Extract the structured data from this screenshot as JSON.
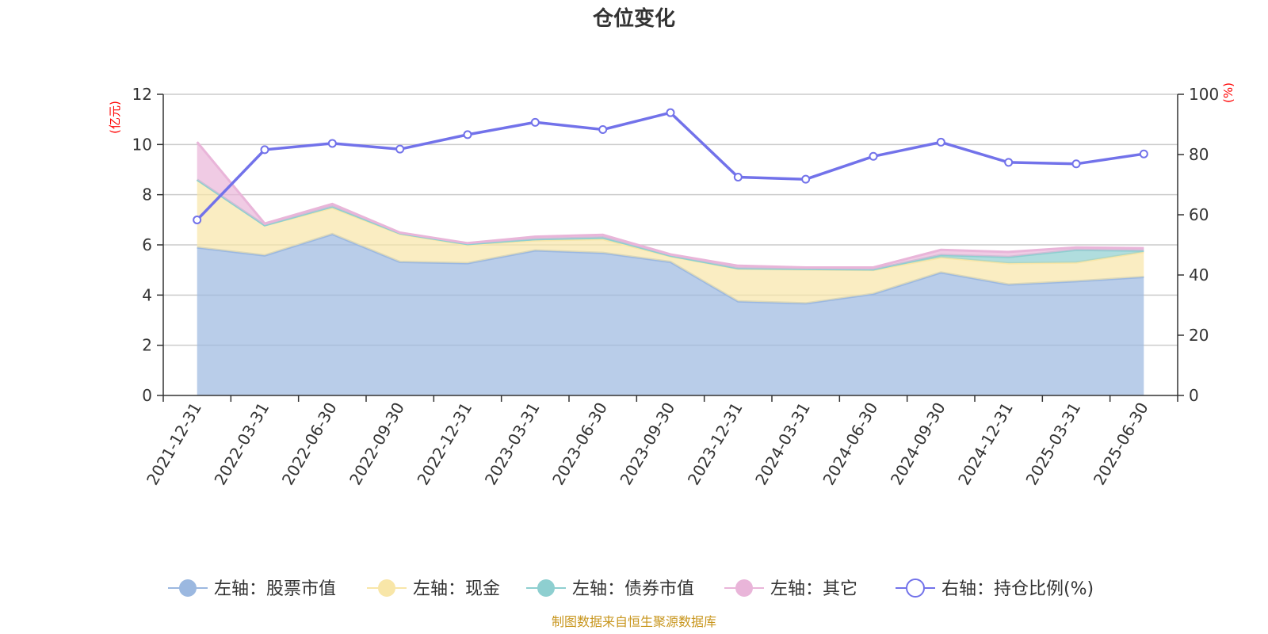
{
  "chart_data": {
    "type": "area",
    "title": "仓位变化",
    "categories": [
      "2021-12-31",
      "2022-03-31",
      "2022-06-30",
      "2022-09-30",
      "2022-12-31",
      "2023-03-31",
      "2023-06-30",
      "2023-09-30",
      "2023-12-31",
      "2024-03-31",
      "2024-06-30",
      "2024-09-30",
      "2024-12-31",
      "2025-03-31",
      "2025-06-30"
    ],
    "left_axis": {
      "unit": "(亿元)",
      "ylim": [
        0,
        12
      ],
      "ticks": [
        "0",
        "2",
        "4",
        "6",
        "8",
        "10",
        "12"
      ]
    },
    "right_axis": {
      "unit": "(%)",
      "ylim": [
        0,
        100
      ],
      "ticks": [
        "0",
        "20",
        "40",
        "60",
        "80",
        "100"
      ]
    },
    "stacked": true,
    "grid": true,
    "legend_position": "bottom",
    "series": [
      {
        "name": "左轴：股票市值",
        "axis": "left",
        "type": "area",
        "color": "#9bb8e0",
        "values": [
          5.9,
          5.58,
          6.43,
          5.32,
          5.27,
          5.78,
          5.68,
          5.32,
          3.75,
          3.67,
          4.05,
          4.9,
          4.42,
          4.55,
          4.72
        ]
      },
      {
        "name": "左轴：现金",
        "axis": "left",
        "type": "area",
        "color": "#f8e6a8",
        "values": [
          2.7,
          1.2,
          1.05,
          1.12,
          0.73,
          0.4,
          0.55,
          0.23,
          1.3,
          1.35,
          0.95,
          0.6,
          0.85,
          0.75,
          1.0
        ]
      },
      {
        "name": "左轴：债券市值",
        "axis": "left",
        "type": "area",
        "color": "#8ecfd0",
        "values": [
          0,
          0,
          0.05,
          0.02,
          0.03,
          0.05,
          0.07,
          0.02,
          0.02,
          0.02,
          0.02,
          0.1,
          0.25,
          0.5,
          0.05
        ]
      },
      {
        "name": "左轴：其它",
        "axis": "left",
        "type": "area",
        "color": "#e9b5d9",
        "values": [
          1.5,
          0.07,
          0.1,
          0.03,
          0.04,
          0.1,
          0.1,
          0.05,
          0.1,
          0.06,
          0.08,
          0.2,
          0.2,
          0.1,
          0.1
        ]
      },
      {
        "name": "右轴：持仓比例(%)",
        "axis": "right",
        "type": "line",
        "color": "#7272ea",
        "values": [
          58.3,
          81.6,
          83.7,
          81.8,
          86.6,
          90.7,
          88.3,
          93.9,
          72.5,
          71.8,
          79.4,
          84.1,
          77.4,
          76.9,
          80.2
        ]
      }
    ]
  },
  "source_note": "制图数据来自恒生聚源数据库"
}
